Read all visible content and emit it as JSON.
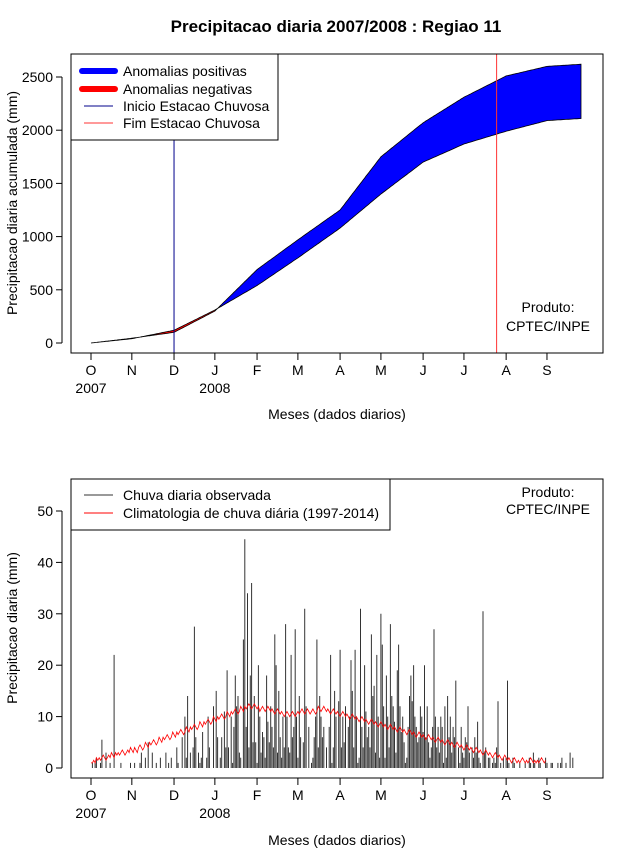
{
  "chart_data": [
    {
      "type": "area",
      "title": "Precipitacao diaria 2007/2008 : Regiao 11",
      "xlabel": "Meses (dados diarios)",
      "ylabel": "Precipitacao diaria acumulada (mm)",
      "ylim": [
        0,
        2600
      ],
      "yticks": [
        "0",
        "500",
        "1000",
        "1500",
        "2000",
        "2500"
      ],
      "months": [
        "O",
        "N",
        "D",
        "J",
        "F",
        "M",
        "A",
        "M",
        "J",
        "J",
        "A",
        "S"
      ],
      "year_labels": [
        "2007",
        "2008"
      ],
      "legend": [
        "Anomalias positivas",
        "Anomalias negativas",
        "Inicio Estacao Chuvosa",
        "Fim Estacao Chuvosa"
      ],
      "legend_position": "top-left",
      "credit": [
        "Produto:",
        "CPTEC/INPE"
      ],
      "onset_date": "2007-12-01",
      "end_date": "2008-07-29",
      "days": [
        0,
        30,
        61,
        91,
        122,
        152,
        183,
        213,
        244,
        274,
        305,
        335,
        360
      ],
      "observed_cumulative": [
        0,
        45,
        100,
        300,
        690,
        970,
        1250,
        1750,
        2070,
        2310,
        2510,
        2600,
        2620
      ],
      "climatology_cumulative": [
        0,
        40,
        120,
        310,
        540,
        800,
        1080,
        1400,
        1700,
        1870,
        1990,
        2090,
        2110
      ],
      "colors": {
        "positive": "#0000ff",
        "negative": "#ff0000",
        "onset_line": "#00008b",
        "end_line": "#ff3333"
      }
    },
    {
      "type": "bar",
      "xlabel": "Meses (dados diarios)",
      "ylabel": "Precipitacao diaria (mm)",
      "ylim": [
        0,
        55
      ],
      "yticks": [
        "0",
        "10",
        "20",
        "30",
        "40",
        "50"
      ],
      "months": [
        "O",
        "N",
        "D",
        "J",
        "F",
        "M",
        "A",
        "M",
        "J",
        "J",
        "A",
        "S"
      ],
      "year_labels": [
        "2007",
        "2008"
      ],
      "legend": [
        "Chuva diaria observada",
        "Climatologia de chuva diária (1997-2014)"
      ],
      "legend_position": "top-left",
      "credit": [
        "Produto:",
        "CPTEC/INPE"
      ],
      "observed_daily_mm": [
        0,
        1,
        0,
        1,
        2,
        0,
        0,
        1,
        5.5,
        0,
        0,
        3,
        0,
        0,
        1,
        0,
        0,
        22,
        0,
        0,
        0,
        0,
        1,
        0,
        0,
        0,
        0,
        0,
        0,
        1,
        0,
        0,
        1,
        0,
        0,
        0,
        1,
        3,
        0,
        0,
        2,
        0,
        5,
        0,
        0,
        3,
        0,
        0,
        1,
        0,
        0,
        2,
        0,
        0,
        0,
        3,
        0,
        1,
        0,
        2,
        0,
        0,
        0,
        4,
        1,
        0,
        0,
        6,
        0,
        10,
        2,
        14,
        0,
        3,
        0,
        4,
        27.5,
        6,
        0,
        3,
        1,
        2,
        7,
        0,
        0,
        2,
        10,
        4,
        0,
        0,
        12,
        0,
        15,
        6,
        0,
        2,
        6,
        0,
        11,
        4,
        19,
        4,
        0,
        10,
        1,
        8,
        18,
        12,
        14,
        3,
        2,
        0,
        25,
        44.5,
        8,
        34,
        4,
        18,
        36,
        5,
        14,
        5,
        1,
        20,
        10,
        3,
        7,
        6,
        2,
        18,
        9,
        5,
        12,
        8,
        4,
        26,
        20,
        3,
        15,
        6,
        2,
        10,
        4,
        28,
        10,
        4,
        3,
        22,
        6,
        8,
        27,
        10,
        2,
        14,
        6,
        0,
        5,
        31,
        12,
        0,
        8,
        0,
        1,
        2,
        6,
        10,
        25,
        4,
        14,
        10,
        6,
        8,
        0,
        4,
        0,
        8,
        22,
        1,
        4,
        15,
        10,
        0,
        13,
        23,
        4,
        10,
        5,
        12,
        0,
        8,
        10,
        21,
        15,
        4,
        23,
        10,
        1,
        2,
        31,
        8,
        4,
        20,
        11,
        6,
        8,
        4,
        26,
        14,
        16,
        3,
        22,
        10,
        2,
        30,
        24,
        12,
        2,
        18,
        10,
        4,
        28,
        14,
        12,
        9,
        3,
        19,
        24,
        12,
        7,
        10,
        5,
        1,
        2,
        8,
        14,
        18,
        13,
        20,
        10,
        8,
        5,
        6,
        12,
        10,
        7,
        20,
        6,
        12,
        5,
        2,
        4,
        8,
        27,
        10,
        4,
        8,
        3,
        10,
        8,
        1,
        12,
        2,
        14,
        6,
        10,
        3,
        8,
        6,
        17,
        0,
        4,
        1,
        8,
        3,
        2,
        6,
        5,
        12,
        3,
        0,
        4,
        2,
        6,
        3,
        9,
        2,
        1,
        0,
        30.5,
        3,
        4,
        0,
        2,
        2,
        0,
        1,
        2,
        1,
        4,
        13,
        0,
        1,
        0,
        2,
        0,
        2,
        17,
        1,
        0,
        0,
        2,
        1,
        0,
        0,
        0,
        1,
        0,
        0,
        0,
        1,
        0,
        0,
        2,
        1,
        0,
        3,
        1,
        0,
        0,
        2,
        1,
        0,
        0,
        0,
        2,
        1,
        0,
        0,
        1,
        1,
        0,
        0,
        0,
        1,
        0,
        1,
        2,
        0,
        0,
        1,
        0,
        0,
        3,
        0,
        2
      ],
      "highlights_mm": {
        "2007-12-26": 27.5,
        "2008-01-22": 44.5,
        "2008-01-25": 34,
        "2008-01-28": 36,
        "2008-02-26": 31,
        "2008-04-20": 31,
        "2008-07-20": 30.5
      },
      "climatology_mm": [
        1,
        1,
        1.5,
        1,
        2,
        1.5,
        2,
        1.5,
        2,
        2.5,
        2,
        1.5,
        2,
        2.5,
        2,
        3,
        2.5,
        2,
        3,
        2.5,
        3,
        2.5,
        3,
        3.5,
        3,
        2.5,
        3,
        3.5,
        3,
        4,
        3.5,
        3,
        4,
        3.5,
        3,
        4,
        4.5,
        4,
        3.5,
        4,
        5,
        4.5,
        4,
        5,
        4.5,
        5,
        5.5,
        5,
        4.5,
        5,
        6,
        5.5,
        5,
        6,
        5.5,
        6,
        6.5,
        6,
        5.5,
        6,
        7,
        6.5,
        6,
        7,
        6.5,
        7,
        7.5,
        7,
        6.5,
        7,
        8,
        7.5,
        7,
        8,
        7.5,
        8,
        8.5,
        8,
        7.5,
        8,
        9,
        8.5,
        8,
        9,
        8.5,
        9,
        9.5,
        9,
        8.5,
        9,
        10,
        9.5,
        9,
        10,
        9.5,
        10,
        10.5,
        10,
        9.5,
        10,
        11,
        10.5,
        10,
        11,
        10.5,
        11,
        11.5,
        11,
        10.5,
        11,
        12,
        11.5,
        11,
        12,
        11.5,
        12,
        12.5,
        12,
        11.5,
        12,
        12.5,
        12,
        11.5,
        12,
        11,
        11.5,
        12,
        11.5,
        11,
        11.5,
        12,
        11.5,
        11,
        11.5,
        11,
        10.5,
        11,
        11.5,
        11,
        10.5,
        11,
        10.5,
        10,
        10.5,
        11,
        10.5,
        10,
        10.5,
        11,
        10.5,
        10,
        10.5,
        11,
        10.5,
        11,
        11.5,
        11,
        10.5,
        11,
        11.5,
        11,
        10.5,
        11,
        11.5,
        11,
        10.5,
        11,
        12,
        11.5,
        11,
        11.5,
        12,
        11.5,
        11,
        11.5,
        11,
        10.5,
        11,
        11.5,
        11,
        10.5,
        11,
        10.5,
        10,
        10.5,
        11,
        10.5,
        10,
        10.5,
        10,
        9.5,
        10,
        10.5,
        10,
        9.5,
        10,
        9.5,
        9,
        9.5,
        10,
        9.5,
        9,
        9.5,
        9,
        8.5,
        9,
        9.5,
        9,
        8.5,
        9,
        8.5,
        8,
        8.5,
        9,
        8.5,
        8,
        8.5,
        8,
        7.5,
        8,
        8.5,
        8,
        7.5,
        8,
        7.5,
        7,
        7.5,
        8,
        7.5,
        7,
        7.5,
        7,
        6.5,
        7,
        7.5,
        7,
        6.5,
        7,
        6.5,
        6,
        6.5,
        7,
        6.5,
        6,
        6.5,
        6,
        5.5,
        6,
        6.5,
        6,
        5.5,
        6,
        5.5,
        5,
        5.5,
        6,
        5.5,
        5,
        5.5,
        5,
        4.5,
        5,
        5.5,
        5,
        4.5,
        5,
        4.5,
        4,
        4.5,
        5,
        4.5,
        4,
        4.5,
        4,
        3.5,
        4,
        4.5,
        4,
        3.5,
        4,
        3.5,
        3,
        3.5,
        4,
        3.5,
        3,
        3.5,
        3,
        2.5,
        3,
        3.5,
        3,
        2.5,
        3,
        2.5,
        2,
        2.5,
        3,
        2.5,
        2,
        2.5,
        2,
        1.5,
        2,
        2.5,
        2,
        1.5,
        2,
        1.5,
        1,
        1.5,
        2,
        1.5,
        1,
        1.5,
        1,
        1.5,
        2,
        1.5,
        1,
        1.5,
        1,
        1.5,
        2,
        1.5,
        1,
        1.5,
        1,
        1.5,
        1,
        1.5,
        2,
        1.5,
        1,
        1.5
      ]
    }
  ]
}
